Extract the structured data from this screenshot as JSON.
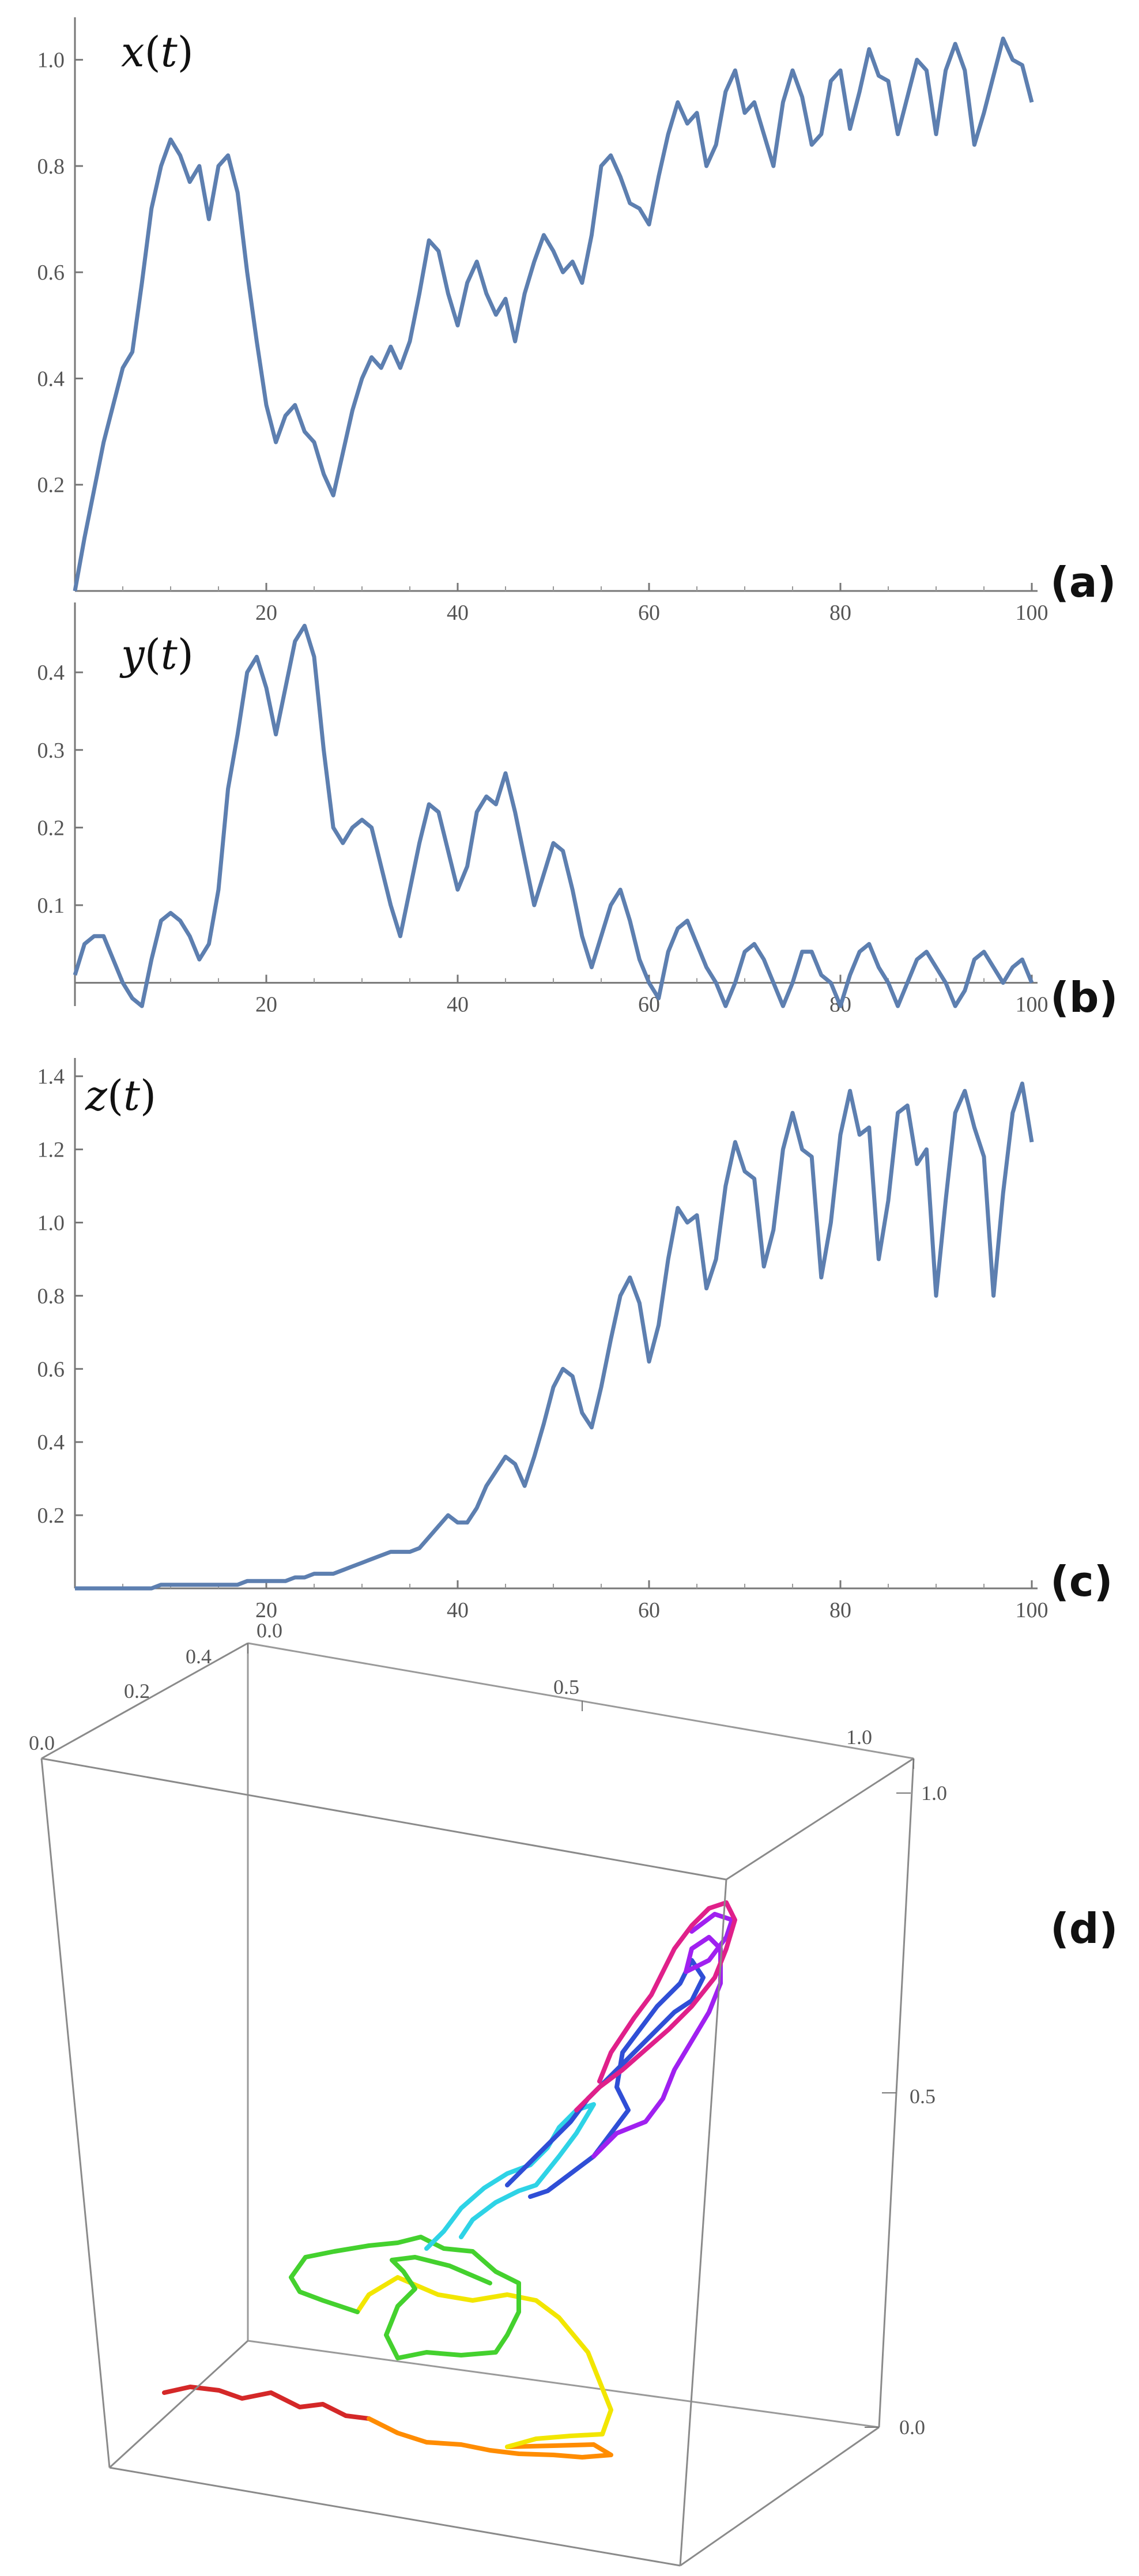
{
  "chart_data": [
    {
      "type": "line",
      "panel": "(a)",
      "ylabel_var": "x",
      "ylabel_arg": "t",
      "xlim": [
        0,
        100
      ],
      "ylim": [
        0,
        1.08
      ],
      "x_ticks": [
        20,
        40,
        60,
        80,
        100
      ],
      "y_ticks": [
        0.2,
        0.4,
        0.6,
        0.8,
        1.0
      ],
      "x_tick_labels": [
        "20",
        "40",
        "60",
        "80",
        "100"
      ],
      "y_tick_labels": [
        "0.2",
        "0.4",
        "0.6",
        "0.8",
        "1.0"
      ],
      "color": "#5d7fb0",
      "series": [
        {
          "x": [
            0,
            1,
            2,
            3,
            4,
            5,
            6,
            7,
            8,
            9,
            10,
            11,
            12,
            13,
            14,
            15,
            16,
            17,
            18,
            19,
            20,
            21,
            22,
            23,
            24,
            25,
            26,
            27,
            28,
            29,
            30,
            31,
            32,
            33,
            34,
            35,
            36,
            37,
            38,
            39,
            40,
            41,
            42,
            43,
            44,
            45,
            46,
            47,
            48,
            49,
            50,
            51,
            52,
            53,
            54,
            55,
            56,
            57,
            58,
            59,
            60,
            61,
            62,
            63,
            64,
            65,
            66,
            67,
            68,
            69,
            70,
            71,
            72,
            73,
            74,
            75,
            76,
            77,
            78,
            79,
            80,
            81,
            82,
            83,
            84,
            85,
            86,
            87,
            88,
            89,
            90,
            91,
            92,
            93,
            94,
            95,
            96,
            97,
            98,
            99,
            100
          ],
          "y": [
            0.0,
            0.1,
            0.19,
            0.28,
            0.35,
            0.42,
            0.45,
            0.58,
            0.72,
            0.8,
            0.85,
            0.82,
            0.77,
            0.8,
            0.7,
            0.8,
            0.82,
            0.75,
            0.6,
            0.47,
            0.35,
            0.28,
            0.33,
            0.35,
            0.3,
            0.28,
            0.22,
            0.18,
            0.26,
            0.34,
            0.4,
            0.44,
            0.42,
            0.46,
            0.42,
            0.47,
            0.56,
            0.66,
            0.64,
            0.56,
            0.5,
            0.58,
            0.62,
            0.56,
            0.52,
            0.55,
            0.47,
            0.56,
            0.62,
            0.67,
            0.64,
            0.6,
            0.62,
            0.58,
            0.67,
            0.8,
            0.82,
            0.78,
            0.73,
            0.72,
            0.69,
            0.78,
            0.86,
            0.92,
            0.88,
            0.9,
            0.8,
            0.84,
            0.94,
            0.98,
            0.9,
            0.92,
            0.86,
            0.8,
            0.92,
            0.98,
            0.93,
            0.84,
            0.86,
            0.96,
            0.98,
            0.87,
            0.94,
            1.02,
            0.97,
            0.96,
            0.86,
            0.93,
            1.0,
            0.98,
            0.86,
            0.98,
            1.03,
            0.98,
            0.84,
            0.9,
            0.97,
            1.04,
            1.0,
            0.99,
            0.92
          ]
        }
      ]
    },
    {
      "type": "line",
      "panel": "(b)",
      "ylabel_var": "y",
      "ylabel_arg": "t",
      "xlim": [
        0,
        100
      ],
      "ylim": [
        -0.03,
        0.49
      ],
      "x_ticks": [
        20,
        40,
        60,
        80,
        100
      ],
      "y_ticks": [
        0.1,
        0.2,
        0.3,
        0.4
      ],
      "x_tick_labels": [
        "20",
        "40",
        "60",
        "80",
        "100"
      ],
      "y_tick_labels": [
        "0.1",
        "0.2",
        "0.3",
        "0.4"
      ],
      "color": "#5d7fb0",
      "series": [
        {
          "x": [
            0,
            1,
            2,
            3,
            4,
            5,
            6,
            7,
            8,
            9,
            10,
            11,
            12,
            13,
            14,
            15,
            16,
            17,
            18,
            19,
            20,
            21,
            22,
            23,
            24,
            25,
            26,
            27,
            28,
            29,
            30,
            31,
            32,
            33,
            34,
            35,
            36,
            37,
            38,
            39,
            40,
            41,
            42,
            43,
            44,
            45,
            46,
            47,
            48,
            49,
            50,
            51,
            52,
            53,
            54,
            55,
            56,
            57,
            58,
            59,
            60,
            61,
            62,
            63,
            64,
            65,
            66,
            67,
            68,
            69,
            70,
            71,
            72,
            73,
            74,
            75,
            76,
            77,
            78,
            79,
            80,
            81,
            82,
            83,
            84,
            85,
            86,
            87,
            88,
            89,
            90,
            91,
            92,
            93,
            94,
            95,
            96,
            97,
            98,
            99,
            100
          ],
          "y": [
            0.01,
            0.05,
            0.06,
            0.06,
            0.03,
            0.0,
            -0.02,
            -0.03,
            0.03,
            0.08,
            0.09,
            0.08,
            0.06,
            0.03,
            0.05,
            0.12,
            0.25,
            0.32,
            0.4,
            0.42,
            0.38,
            0.32,
            0.38,
            0.44,
            0.46,
            0.42,
            0.3,
            0.2,
            0.18,
            0.2,
            0.21,
            0.2,
            0.15,
            0.1,
            0.06,
            0.12,
            0.18,
            0.23,
            0.22,
            0.17,
            0.12,
            0.15,
            0.22,
            0.24,
            0.23,
            0.27,
            0.22,
            0.16,
            0.1,
            0.14,
            0.18,
            0.17,
            0.12,
            0.06,
            0.02,
            0.06,
            0.1,
            0.12,
            0.08,
            0.03,
            0.0,
            -0.02,
            0.04,
            0.07,
            0.08,
            0.05,
            0.02,
            0.0,
            -0.03,
            0.0,
            0.04,
            0.05,
            0.03,
            0.0,
            -0.03,
            0.0,
            0.04,
            0.04,
            0.01,
            0.0,
            -0.03,
            0.01,
            0.04,
            0.05,
            0.02,
            0.0,
            -0.03,
            0.0,
            0.03,
            0.04,
            0.02,
            0.0,
            -0.03,
            -0.01,
            0.03,
            0.04,
            0.02,
            0.0,
            0.02,
            0.03,
            0.0
          ]
        }
      ]
    },
    {
      "type": "line",
      "panel": "(c)",
      "ylabel_var": "z",
      "ylabel_arg": "t",
      "xlim": [
        0,
        100
      ],
      "ylim": [
        0,
        1.45
      ],
      "x_ticks": [
        20,
        40,
        60,
        80,
        100
      ],
      "y_ticks": [
        0.2,
        0.4,
        0.6,
        0.8,
        1.0,
        1.2,
        1.4
      ],
      "x_tick_labels": [
        "20",
        "40",
        "60",
        "80",
        "100"
      ],
      "y_tick_labels": [
        "0.2",
        "0.4",
        "0.6",
        "0.8",
        "1.0",
        "1.2",
        "1.4"
      ],
      "color": "#5d7fb0",
      "series": [
        {
          "x": [
            0,
            1,
            2,
            3,
            4,
            5,
            6,
            7,
            8,
            9,
            10,
            11,
            12,
            13,
            14,
            15,
            16,
            17,
            18,
            19,
            20,
            21,
            22,
            23,
            24,
            25,
            26,
            27,
            28,
            29,
            30,
            31,
            32,
            33,
            34,
            35,
            36,
            37,
            38,
            39,
            40,
            41,
            42,
            43,
            44,
            45,
            46,
            47,
            48,
            49,
            50,
            51,
            52,
            53,
            54,
            55,
            56,
            57,
            58,
            59,
            60,
            61,
            62,
            63,
            64,
            65,
            66,
            67,
            68,
            69,
            70,
            71,
            72,
            73,
            74,
            75,
            76,
            77,
            78,
            79,
            80,
            81,
            82,
            83,
            84,
            85,
            86,
            87,
            88,
            89,
            90,
            91,
            92,
            93,
            94,
            95,
            96,
            97,
            98,
            99,
            100
          ],
          "y": [
            0,
            0,
            0,
            0,
            0,
            0,
            0,
            0,
            0,
            0.01,
            0.01,
            0.01,
            0.01,
            0.01,
            0.01,
            0.01,
            0.01,
            0.01,
            0.02,
            0.02,
            0.02,
            0.02,
            0.02,
            0.03,
            0.03,
            0.04,
            0.04,
            0.04,
            0.05,
            0.06,
            0.07,
            0.08,
            0.09,
            0.1,
            0.1,
            0.1,
            0.11,
            0.14,
            0.17,
            0.2,
            0.18,
            0.18,
            0.22,
            0.28,
            0.32,
            0.36,
            0.34,
            0.28,
            0.36,
            0.45,
            0.55,
            0.6,
            0.58,
            0.48,
            0.44,
            0.55,
            0.68,
            0.8,
            0.85,
            0.78,
            0.62,
            0.72,
            0.9,
            1.04,
            1.0,
            1.02,
            0.82,
            0.9,
            1.1,
            1.22,
            1.14,
            1.12,
            0.88,
            0.98,
            1.2,
            1.3,
            1.2,
            1.18,
            0.85,
            1.0,
            1.24,
            1.36,
            1.24,
            1.26,
            0.9,
            1.06,
            1.3,
            1.32,
            1.16,
            1.2,
            0.8,
            1.06,
            1.3,
            1.36,
            1.26,
            1.18,
            0.8,
            1.08,
            1.3,
            1.38,
            1.22
          ]
        }
      ]
    }
  ],
  "panel_d": {
    "label": "(d)",
    "tick_labels_y_depth": [
      "0.0",
      "0.2",
      "0.4"
    ],
    "tick_labels_x_top": [
      "0.0",
      "0.5",
      "1.0"
    ],
    "tick_labels_z_right": [
      "0.0",
      "0.5",
      "1.0"
    ],
    "colors": [
      "#d42828",
      "#ff8c00",
      "#f2e600",
      "#44d12e",
      "#2ed3e6",
      "#2f4ed6",
      "#a020f0",
      "#e0208a"
    ]
  }
}
